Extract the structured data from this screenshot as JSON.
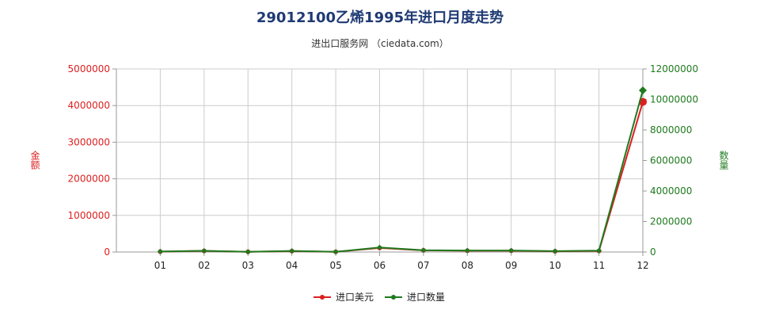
{
  "title": "29012100乙烯1995年进口月度走势",
  "subtitle": "进出口服务网 （ciedata.com）",
  "colors": {
    "left": "#dd1f1f",
    "right": "#1f7a1f",
    "title": "#1f3a73",
    "grid": "#cccccc"
  },
  "chart_data": {
    "type": "line",
    "title": "29012100乙烯1995年进口月度走势",
    "categories": [
      "01",
      "02",
      "03",
      "04",
      "05",
      "06",
      "07",
      "08",
      "09",
      "10",
      "11",
      "12"
    ],
    "y_left": {
      "label": "金额",
      "ylim": [
        0,
        5000000
      ],
      "ticks": [
        "0",
        "1000000",
        "2000000",
        "3000000",
        "4000000",
        "5000000"
      ]
    },
    "y_right": {
      "label": "数量",
      "ylim": [
        0,
        12000000
      ],
      "ticks": [
        "0",
        "2000000",
        "4000000",
        "6000000",
        "8000000",
        "10000000",
        "12000000"
      ]
    },
    "series": [
      {
        "name": "进口美元",
        "axis": "left",
        "color": "#dd1f1f",
        "values": [
          10000,
          30000,
          5000,
          25000,
          5000,
          110000,
          45000,
          35000,
          35000,
          20000,
          30000,
          4100000
        ]
      },
      {
        "name": "进口数量",
        "axis": "right",
        "color": "#1f7a1f",
        "values": [
          30000,
          80000,
          15000,
          70000,
          15000,
          300000,
          120000,
          100000,
          100000,
          60000,
          90000,
          10600000
        ]
      }
    ],
    "grid": true,
    "legend_position": "bottom-center"
  }
}
